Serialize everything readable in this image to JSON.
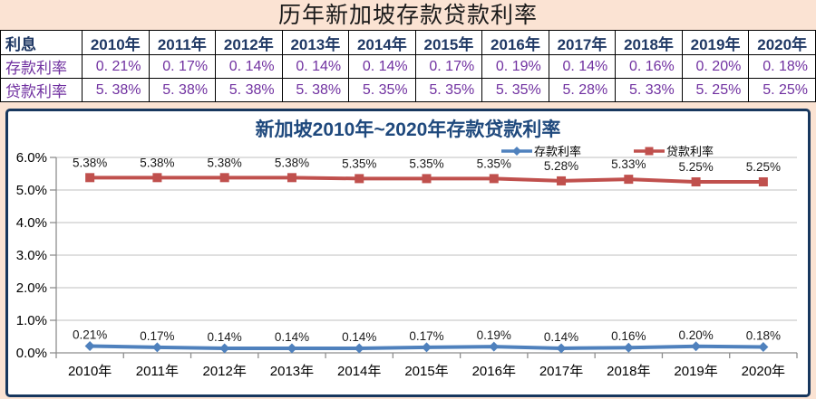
{
  "page": {
    "title": "历年新加坡存款贷款利率",
    "bg_color": "#fbe3d3"
  },
  "table": {
    "header": [
      "利息",
      "2010年",
      "2011年",
      "2012年",
      "2013年",
      "2014年",
      "2015年",
      "2016年",
      "2017年",
      "2018年",
      "2019年",
      "2020年"
    ],
    "rows": [
      {
        "label": "存款利率",
        "values": [
          "0. 21%",
          "0. 17%",
          "0. 14%",
          "0. 14%",
          "0. 14%",
          "0. 17%",
          "0. 19%",
          "0. 14%",
          "0. 16%",
          "0. 20%",
          "0. 18%"
        ]
      },
      {
        "label": "贷款利率",
        "values": [
          "5. 38%",
          "5. 38%",
          "5. 38%",
          "5. 38%",
          "5. 35%",
          "5. 35%",
          "5. 35%",
          "5. 28%",
          "5. 33%",
          "5. 25%",
          "5. 25%"
        ]
      }
    ],
    "header_color": "#1f3864",
    "value_color": "#7030a0"
  },
  "chart_data": {
    "type": "line",
    "title": "新加坡2010年~2020年存款贷款利率",
    "title_color": "#1f497d",
    "categories": [
      "2010年",
      "2011年",
      "2012年",
      "2013年",
      "2014年",
      "2015年",
      "2016年",
      "2017年",
      "2018年",
      "2019年",
      "2020年"
    ],
    "series": [
      {
        "name": "存款利率",
        "color": "#4f81bd",
        "marker": "diamond",
        "values": [
          0.21,
          0.17,
          0.14,
          0.14,
          0.14,
          0.17,
          0.19,
          0.14,
          0.16,
          0.2,
          0.18
        ],
        "labels": [
          "0.21%",
          "0.17%",
          "0.14%",
          "0.14%",
          "0.14%",
          "0.17%",
          "0.19%",
          "0.14%",
          "0.16%",
          "0.20%",
          "0.18%"
        ]
      },
      {
        "name": "贷款利率",
        "color": "#c0504d",
        "marker": "square",
        "values": [
          5.38,
          5.38,
          5.38,
          5.38,
          5.35,
          5.35,
          5.35,
          5.28,
          5.33,
          5.25,
          5.25
        ],
        "labels": [
          "5.38%",
          "5.38%",
          "5.38%",
          "5.38%",
          "5.35%",
          "5.35%",
          "5.35%",
          "5.28%",
          "5.33%",
          "5.25%",
          "5.25%"
        ]
      }
    ],
    "ylim": [
      0,
      6
    ],
    "ytick_labels": [
      "0.0%",
      "1.0%",
      "2.0%",
      "3.0%",
      "4.0%",
      "5.0%",
      "6.0%"
    ],
    "grid": true,
    "legend_position": "top-right",
    "gridline_color": "#bfbfbf",
    "axis_color": "#8e8e8e"
  }
}
